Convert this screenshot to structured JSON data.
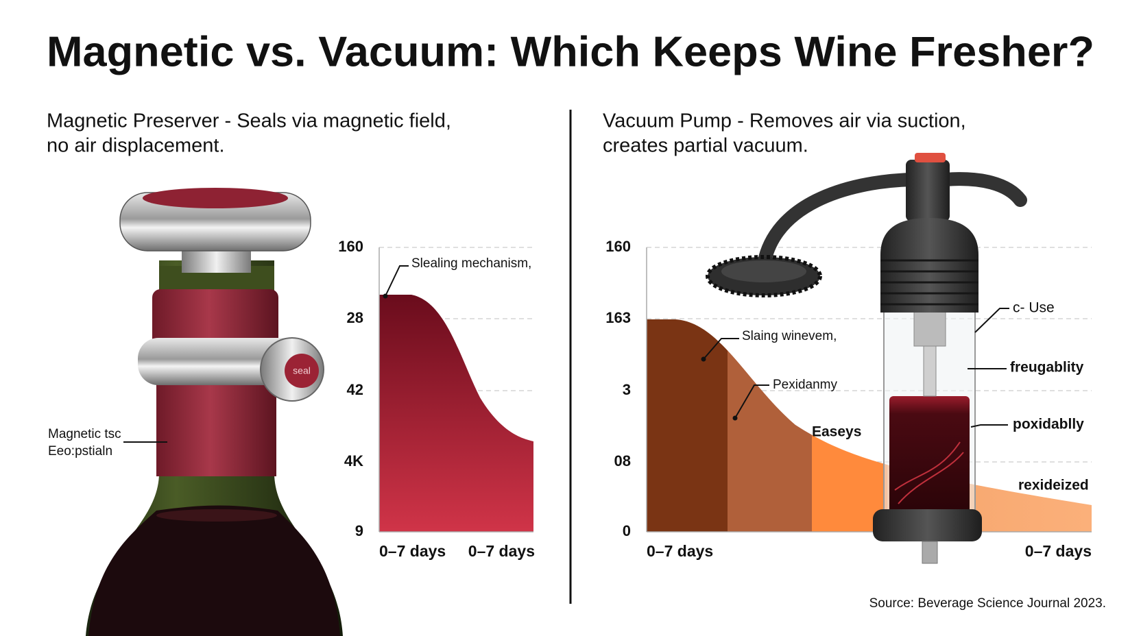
{
  "title": "Magnetic vs. Vacuum: Which Keeps Wine Fresher?",
  "left": {
    "heading": [
      "Magnetic Preserver - Seals via magnetic field,",
      "no air displacement."
    ],
    "stopper_label": "seal",
    "callout": [
      "Magnetic tsc",
      "Eeo:pstialn"
    ],
    "chart": {
      "yticks": [
        "160",
        "28",
        "42",
        "4K",
        "9"
      ],
      "xticks": [
        "0–7 days",
        "0–7 days"
      ],
      "annotation": "Slealing mechanism,"
    }
  },
  "right": {
    "heading": [
      "Vacuum Pump - Removes air via suction,",
      "creates partial vacuum."
    ],
    "chart": {
      "yticks": [
        "160",
        "163",
        "3",
        "08",
        "0"
      ],
      "xticks": [
        "0–7 days",
        "0–7 days"
      ],
      "annotations": [
        "Slaing winevem,",
        "Pexidanmy",
        "Easeys",
        "c- Use",
        "freugablity",
        "poxidablly",
        "rexideized"
      ]
    }
  },
  "source": "Source: Beverage Science Journal 2023."
}
